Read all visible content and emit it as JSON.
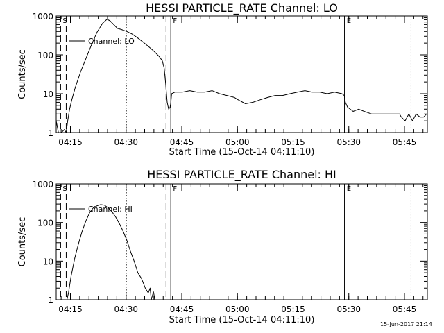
{
  "footer": {
    "timestamp": "15-Jun-2017 21:14"
  },
  "chart_data": [
    {
      "type": "line",
      "title": "HESSI PARTICLE_RATE Channel: LO",
      "xlabel": "Start Time (15-Oct-14 04:11:10)",
      "ylabel": "Counts/sec",
      "yscale": "log",
      "xlim_min": [
        0,
        100
      ],
      "ylim": [
        1,
        1000
      ],
      "xticks": [
        {
          "min": 3.83,
          "label": "04:15"
        },
        {
          "min": 18.83,
          "label": "04:30"
        },
        {
          "min": 33.83,
          "label": "04:45"
        },
        {
          "min": 48.83,
          "label": "05:00"
        },
        {
          "min": 63.83,
          "label": "05:15"
        },
        {
          "min": 78.83,
          "label": "05:30"
        },
        {
          "min": 93.83,
          "label": "05:45"
        }
      ],
      "yticks": [
        {
          "v": 1,
          "label": "1"
        },
        {
          "v": 10,
          "label": "10"
        },
        {
          "v": 100,
          "label": "100"
        },
        {
          "v": 1000,
          "label": "1000"
        }
      ],
      "legend": {
        "label": "Channel: LO",
        "placement": "top-left"
      },
      "markers": [
        {
          "min": 1.2,
          "style": "dashed",
          "label": "S"
        },
        {
          "min": 2.7,
          "style": "dashed",
          "label": ""
        },
        {
          "min": 18.9,
          "style": "dotted",
          "label": ""
        },
        {
          "min": 29.6,
          "style": "dashed",
          "label": ""
        },
        {
          "min": 30.9,
          "style": "solid",
          "label": "F"
        },
        {
          "min": 77.7,
          "style": "solid",
          "label": "E"
        },
        {
          "min": 95.6,
          "style": "dotted",
          "label": ""
        }
      ],
      "series": [
        {
          "x": [
            0,
            0.6,
            1.4,
            2.2,
            2.7,
            3.1,
            3.6,
            4.2,
            5.2,
            6.5,
            8,
            9.5,
            11,
            12.5,
            13.7,
            14.5,
            15.5,
            16.5,
            17.5,
            19,
            20.5,
            22,
            23.5,
            25,
            26.5,
            27.8,
            28.6,
            29.1,
            29.5,
            29.9,
            30.3,
            30.7,
            30.9,
            31.1,
            32,
            34,
            36,
            38,
            40,
            42,
            44,
            46,
            48,
            49,
            51,
            53,
            55,
            57,
            59,
            61,
            63,
            65,
            67,
            69,
            71,
            73,
            75,
            77,
            77.6,
            77.9,
            78.5,
            80,
            81.5,
            83,
            85,
            87,
            89,
            91,
            92.5,
            93,
            94,
            95,
            96,
            97,
            98,
            99,
            99.8
          ],
          "y": [
            2,
            1,
            1,
            1.2,
            1,
            2,
            4,
            7,
            15,
            35,
            80,
            180,
            380,
            650,
            820,
            750,
            600,
            480,
            450,
            400,
            340,
            270,
            210,
            160,
            120,
            90,
            70,
            45,
            18,
            6,
            4,
            4.5,
            6,
            10,
            11,
            11,
            12,
            11,
            11,
            12,
            10,
            9,
            8,
            7,
            5.5,
            6,
            7,
            8,
            9,
            9,
            10,
            11,
            12,
            11,
            11,
            10,
            11,
            10,
            9,
            6,
            4.5,
            3.5,
            4,
            3.5,
            3,
            3,
            3,
            3,
            3,
            2.5,
            2,
            3,
            2,
            3,
            2.5,
            2.5,
            3
          ]
        }
      ]
    },
    {
      "type": "line",
      "title": "HESSI PARTICLE_RATE Channel: HI",
      "xlabel": "Start Time (15-Oct-14 04:11:10)",
      "ylabel": "Counts/sec",
      "yscale": "log",
      "xlim_min": [
        0,
        100
      ],
      "ylim": [
        1,
        1000
      ],
      "xticks": [
        {
          "min": 3.83,
          "label": "04:15"
        },
        {
          "min": 18.83,
          "label": "04:30"
        },
        {
          "min": 33.83,
          "label": "04:45"
        },
        {
          "min": 48.83,
          "label": "05:00"
        },
        {
          "min": 63.83,
          "label": "05:15"
        },
        {
          "min": 78.83,
          "label": "05:30"
        },
        {
          "min": 93.83,
          "label": "05:45"
        }
      ],
      "yticks": [
        {
          "v": 1,
          "label": "1"
        },
        {
          "v": 10,
          "label": "10"
        },
        {
          "v": 100,
          "label": "100"
        },
        {
          "v": 1000,
          "label": "1000"
        }
      ],
      "legend": {
        "label": "Channel: HI",
        "placement": "top-left"
      },
      "markers": [
        {
          "min": 1.2,
          "style": "dashed",
          "label": "S"
        },
        {
          "min": 2.7,
          "style": "dashed",
          "label": ""
        },
        {
          "min": 18.9,
          "style": "dotted",
          "label": ""
        },
        {
          "min": 29.6,
          "style": "dashed",
          "label": ""
        },
        {
          "min": 30.9,
          "style": "solid",
          "label": "F"
        },
        {
          "min": 77.7,
          "style": "solid",
          "label": "E"
        },
        {
          "min": 95.6,
          "style": "dotted",
          "label": ""
        }
      ],
      "series": [
        {
          "x": [
            2.9,
            3.3,
            4,
            5,
            6,
            7,
            8,
            9,
            10,
            11,
            12,
            13,
            14,
            15,
            16,
            17,
            18,
            19,
            20,
            21,
            22,
            23,
            24,
            24.8,
            25.3,
            25.6,
            26.2,
            26.6,
            26.9
          ],
          "y": [
            1,
            1.5,
            4,
            12,
            28,
            60,
            110,
            180,
            240,
            270,
            290,
            280,
            240,
            190,
            140,
            95,
            60,
            35,
            18,
            10,
            5,
            3.5,
            2,
            1.5,
            2,
            1,
            1.6,
            1,
            1
          ]
        }
      ]
    }
  ]
}
